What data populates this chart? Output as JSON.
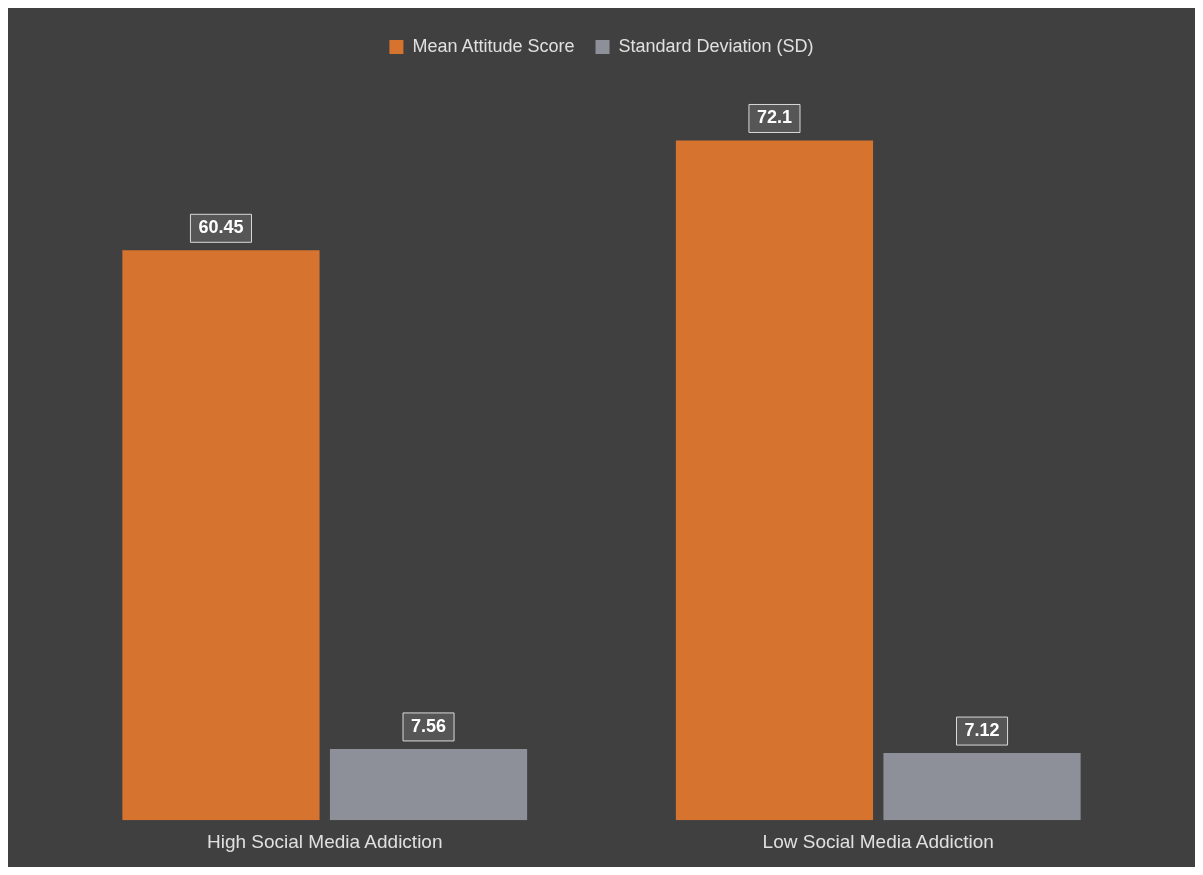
{
  "chart_data": {
    "type": "bar",
    "categories": [
      "High Social Media Addiction",
      "Low Social Media Addiction"
    ],
    "series": [
      {
        "name": "Mean Attitude Score",
        "color": "#d5732f",
        "values": [
          60.45,
          72.1
        ]
      },
      {
        "name": "Standard Deviation (SD)",
        "color": "#8e9099",
        "values": [
          7.56,
          7.12
        ]
      }
    ],
    "data_labels": true,
    "legend": "top",
    "grid": false
  }
}
